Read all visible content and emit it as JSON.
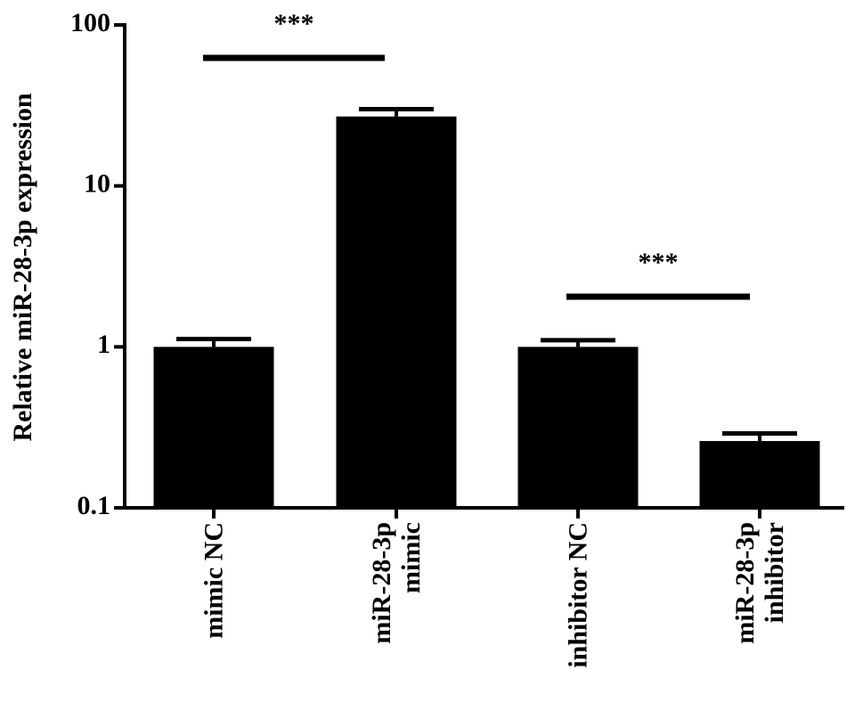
{
  "chart_data": {
    "type": "bar",
    "y_label": "Relative  miR-28-3p expression",
    "categories": [
      "mimic NC",
      "miR-28-3p mimic",
      "inhibitor NC",
      "miR-28-3p inhibitor"
    ],
    "values": [
      1.0,
      27,
      1.0,
      0.26
    ],
    "errors": [
      0.12,
      3,
      0.1,
      0.03
    ],
    "color": "#000000",
    "log_scale": true,
    "ylim": [
      0.1,
      100
    ],
    "yticks": [
      0.1,
      1,
      10,
      100
    ],
    "grid": false,
    "annotations": [
      {
        "text": "***"
      },
      {
        "text": "***"
      }
    ]
  }
}
